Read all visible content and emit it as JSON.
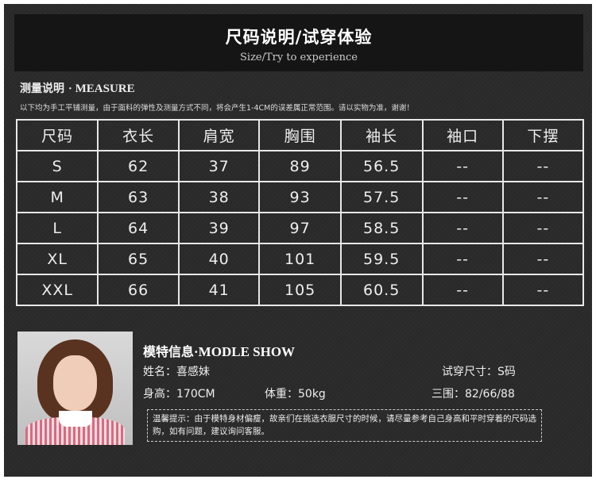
{
  "header": {
    "title": "尺码说明/试穿体验",
    "subtitle": "Size/Try to experience"
  },
  "measure": {
    "title_cn": "测量说明",
    "title_en": "· MEASURE",
    "note": "以下均为手工平铺测量，由于面料的弹性及测量方式不同，将会产生1-4CM的误差属正常范围。请以实物为准，谢谢！"
  },
  "table": {
    "headers": [
      "尺码",
      "衣长",
      "肩宽",
      "胸围",
      "袖长",
      "袖口",
      "下摆"
    ],
    "rows": [
      [
        "S",
        "62",
        "37",
        "89",
        "56.5",
        "--",
        "--"
      ],
      [
        "M",
        "63",
        "38",
        "93",
        "57.5",
        "--",
        "--"
      ],
      [
        "L",
        "64",
        "39",
        "97",
        "58.5",
        "--",
        "--"
      ],
      [
        "XL",
        "65",
        "40",
        "101",
        "59.5",
        "--",
        "--"
      ],
      [
        "XXL",
        "66",
        "41",
        "105",
        "60.5",
        "--",
        "--"
      ]
    ]
  },
  "model": {
    "title_cn": "模特信息",
    "title_en": "·MODLE SHOW",
    "name": "姓名：喜感妹",
    "size": "试穿尺寸：S码",
    "height": "身高：170CM",
    "weight": "体重：50kg",
    "measurements": "三围：82/66/88",
    "tip": "温馨提示：由于模特身材偏瘦，故亲们在挑选衣服尺寸的时候，请尽量参考自己身高和平时穿着的尺码选购，如有问题，建议询问客服。"
  }
}
